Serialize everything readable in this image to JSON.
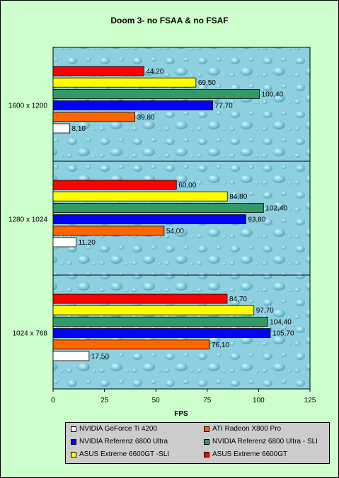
{
  "chart_data": {
    "type": "bar",
    "orientation": "horizontal",
    "title": "Doom 3- no FSAA & no FSAF",
    "xlabel": "FPS",
    "ylabel": "",
    "xlim": [
      0,
      125
    ],
    "xticks": [
      "0",
      "25",
      "50",
      "75",
      "100",
      "125"
    ],
    "categories": [
      "1600 x 1200",
      "1280 x 1024",
      "1024 x 768"
    ],
    "grid": false,
    "legend_position": "bottom",
    "series": [
      {
        "name": "NVIDIA GeForce Ti 4200",
        "color": "#ffffff",
        "values": [
          8.1,
          11.2,
          17.5
        ],
        "labels": [
          "8,10",
          "11,20",
          "17,50"
        ]
      },
      {
        "name": "ATI Radeon X800 Pro",
        "color": "#ff6600",
        "values": [
          39.8,
          54.0,
          76.1
        ],
        "labels": [
          "39,80",
          "54,00",
          "76,10"
        ]
      },
      {
        "name": "NVIDIA  Referenz 6800 Ultra",
        "color": "#0000ff",
        "values": [
          77.7,
          93.8,
          105.7
        ],
        "labels": [
          "77,70",
          "93,80",
          "105,70"
        ]
      },
      {
        "name": "NVIDIA  Referenz 6800 Ultra - SLI",
        "color": "#339966",
        "values": [
          100.4,
          102.4,
          104.4
        ],
        "labels": [
          "100,40",
          "102,40",
          "104,40"
        ]
      },
      {
        "name": "ASUS Extreme 6600GT -SLI",
        "color": "#ffff00",
        "values": [
          69.5,
          84.8,
          97.7
        ],
        "labels": [
          "69,50",
          "84,80",
          "97,70"
        ]
      },
      {
        "name": "ASUS Extreme 6600GT",
        "color": "#ff0000",
        "values": [
          44.2,
          60.0,
          84.7
        ],
        "labels": [
          "44,20",
          "60,00",
          "84,70"
        ]
      }
    ]
  }
}
